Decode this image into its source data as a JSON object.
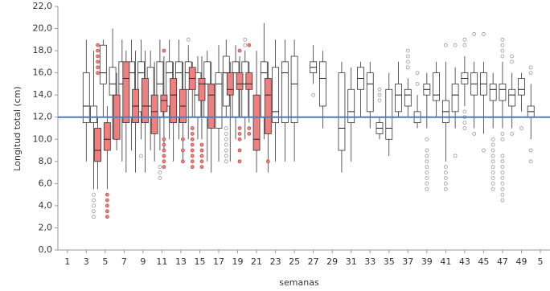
{
  "chart_data": {
    "type": "boxplot",
    "x_label": "semanas",
    "y_label": "Longitud total (cm)",
    "xlim": [
      0,
      51
    ],
    "ylim": [
      0,
      22
    ],
    "xticks": [
      1,
      3,
      5,
      7,
      9,
      11,
      13,
      15,
      17,
      19,
      21,
      23,
      25,
      27,
      29,
      31,
      33,
      35,
      37,
      39,
      41,
      43,
      45,
      47,
      49,
      {
        "value": 51,
        "label": "5"
      }
    ],
    "yticks": [
      {
        "value": 0,
        "label": "0,0"
      },
      {
        "value": 2,
        "label": "2,0"
      },
      {
        "value": 4,
        "label": "4,0"
      },
      {
        "value": 6,
        "label": "6,0"
      },
      {
        "value": 8,
        "label": "8,0"
      },
      {
        "value": 10,
        "label": "10,0"
      },
      {
        "value": 12,
        "label": "12,0"
      },
      {
        "value": 14,
        "label": "14,0"
      },
      {
        "value": 16,
        "label": "16,0"
      },
      {
        "value": 18,
        "label": "18,0"
      },
      {
        "value": 20,
        "label": "20,0"
      },
      {
        "value": 22,
        "label": "22,0"
      }
    ],
    "reference_line": {
      "value": 12,
      "color": "#4a7ebb"
    },
    "series": [
      {
        "color": "#ffffff",
        "flier_color": "#999999",
        "boxes": [
          {
            "x": 3,
            "whislo": 8,
            "q1": 11.5,
            "med": 13,
            "q3": 16,
            "whishi": 19
          },
          {
            "x": 4,
            "whislo": 5.5,
            "q1": 11.5,
            "med": 12,
            "q3": 13,
            "whishi": 18,
            "fliers": [
              3,
              3.5,
              4,
              4.5,
              5
            ]
          },
          {
            "x": 5,
            "whislo": 12,
            "q1": 15,
            "med": 16,
            "q3": 18.5,
            "whishi": 19
          },
          {
            "x": 6,
            "whislo": 10,
            "q1": 14,
            "med": 15,
            "q3": 16.5,
            "whishi": 20
          },
          {
            "x": 7,
            "whislo": 8,
            "q1": 12,
            "med": 15,
            "q3": 17,
            "whishi": 19
          },
          {
            "x": 8,
            "whislo": 9,
            "q1": 12,
            "med": 16,
            "q3": 17,
            "whishi": 19
          },
          {
            "x": 9,
            "whislo": 10,
            "q1": 12.5,
            "med": 16,
            "q3": 17,
            "whishi": 19,
            "fliers": [
              8.5
            ]
          },
          {
            "x": 10,
            "whislo": 9,
            "q1": 12,
            "med": 13,
            "q3": 16.5,
            "whishi": 18
          },
          {
            "x": 11,
            "whislo": 9,
            "q1": 12,
            "med": 15,
            "q3": 17,
            "whishi": 19,
            "fliers": [
              6.5,
              7,
              7.5
            ]
          },
          {
            "x": 12,
            "whislo": 10,
            "q1": 13,
            "med": 16,
            "q3": 17,
            "whishi": 19
          },
          {
            "x": 13,
            "whislo": 10,
            "q1": 12,
            "med": 16,
            "q3": 17,
            "whishi": 19
          },
          {
            "x": 14,
            "whislo": 10,
            "q1": 14.5,
            "med": 16,
            "q3": 17,
            "whishi": 18.5,
            "fliers": [
              19
            ]
          },
          {
            "x": 15,
            "whislo": 10,
            "q1": 12,
            "med": 14,
            "q3": 16,
            "whishi": 17.5
          },
          {
            "x": 16,
            "whislo": 8,
            "q1": 12,
            "med": 15,
            "q3": 17,
            "whishi": 18
          },
          {
            "x": 17,
            "whislo": 8,
            "q1": 11,
            "med": 15,
            "q3": 16,
            "whishi": 18.5
          },
          {
            "x": 18,
            "whislo": 12,
            "q1": 13,
            "med": 16,
            "q3": 17.5,
            "whishi": 19,
            "fliers": [
              8,
              8.5,
              9,
              9.5,
              10,
              10.5,
              11
            ]
          },
          {
            "x": 19,
            "whislo": 10,
            "q1": 12,
            "med": 16,
            "q3": 17,
            "whishi": 18.5
          },
          {
            "x": 20,
            "whislo": 10,
            "q1": 12,
            "med": 15,
            "q3": 17,
            "whishi": 18,
            "fliers": [
              18.5,
              19
            ]
          },
          {
            "x": 22,
            "whislo": 10,
            "q1": 12,
            "med": 16,
            "q3": 17,
            "whishi": 20.5
          },
          {
            "x": 23,
            "whislo": 8,
            "q1": 11.5,
            "med": 12.5,
            "q3": 16.5,
            "whishi": 19
          },
          {
            "x": 24,
            "whislo": 8,
            "q1": 11.5,
            "med": 16,
            "q3": 17,
            "whishi": 19
          },
          {
            "x": 25,
            "whislo": 8,
            "q1": 11.5,
            "med": 15,
            "q3": 17.5,
            "whishi": 19
          },
          {
            "x": 27,
            "whislo": 15,
            "q1": 16,
            "med": 16.5,
            "q3": 17,
            "whishi": 18.5,
            "fliers": [
              14
            ]
          },
          {
            "x": 28,
            "whislo": 11,
            "q1": 13,
            "med": 15.5,
            "q3": 17,
            "whishi": 18
          },
          {
            "x": 30,
            "whislo": 7,
            "q1": 9,
            "med": 11,
            "q3": 16,
            "whishi": 17
          },
          {
            "x": 31,
            "whislo": 8,
            "q1": 11.5,
            "med": 12.5,
            "q3": 14.5,
            "whishi": 16.5
          },
          {
            "x": 32,
            "whislo": 12,
            "q1": 14.5,
            "med": 15.5,
            "q3": 16.5,
            "whishi": 17
          },
          {
            "x": 33,
            "whislo": 11,
            "q1": 12.5,
            "med": 15,
            "q3": 16,
            "whishi": 17
          },
          {
            "x": 34,
            "whislo": 10,
            "q1": 10.5,
            "med": 11,
            "q3": 11.5,
            "whishi": 12,
            "fliers": [
              13.5,
              14,
              14.5
            ]
          },
          {
            "x": 35,
            "whislo": 8.5,
            "q1": 10,
            "med": 11,
            "q3": 14.5,
            "whishi": 16
          },
          {
            "x": 36,
            "whislo": 12,
            "q1": 12.5,
            "med": 14,
            "q3": 15,
            "whishi": 17
          },
          {
            "x": 37,
            "whislo": 12,
            "q1": 13,
            "med": 14,
            "q3": 14.5,
            "whishi": 15.5,
            "fliers": [
              16.5,
              17,
              17.5,
              18
            ]
          },
          {
            "x": 38,
            "whislo": 11,
            "q1": 11.5,
            "med": 12,
            "q3": 12.5,
            "whishi": 14,
            "fliers": [
              15,
              16
            ]
          },
          {
            "x": 39,
            "whislo": 11,
            "q1": 14,
            "med": 14.5,
            "q3": 15,
            "whishi": 16,
            "fliers": [
              5.5,
              6,
              6.5,
              7,
              7.5,
              8,
              8.5,
              9,
              10
            ]
          },
          {
            "x": 40,
            "whislo": 12,
            "q1": 13.5,
            "med": 14,
            "q3": 16,
            "whishi": 17
          },
          {
            "x": 41,
            "whislo": 8,
            "q1": 11.5,
            "med": 12.5,
            "q3": 13.5,
            "whishi": 17,
            "fliers": [
              5.5,
              6,
              6.5,
              7,
              7.5,
              18.5
            ]
          },
          {
            "x": 42,
            "whislo": 11,
            "q1": 12.5,
            "med": 14,
            "q3": 15,
            "whishi": 16.5,
            "fliers": [
              8.5,
              18.5
            ]
          },
          {
            "x": 43,
            "whislo": 13,
            "q1": 15,
            "med": 15.5,
            "q3": 16,
            "whishi": 17.5,
            "fliers": [
              11,
              11.5,
              12,
              12.5,
              18.5,
              19
            ]
          },
          {
            "x": 44,
            "whislo": 11,
            "q1": 14,
            "med": 15,
            "q3": 16,
            "whishi": 17,
            "fliers": [
              10.5,
              19.5
            ]
          },
          {
            "x": 45,
            "whislo": 10.5,
            "q1": 14,
            "med": 15,
            "q3": 16,
            "whishi": 17,
            "fliers": [
              9,
              19.5
            ]
          },
          {
            "x": 46,
            "whislo": 11,
            "q1": 13.5,
            "med": 14.5,
            "q3": 15,
            "whishi": 16,
            "fliers": [
              5.5,
              6,
              6.5,
              7,
              7.5,
              8,
              8.5,
              9,
              9.5,
              10
            ]
          },
          {
            "x": 47,
            "whislo": 11,
            "q1": 13.5,
            "med": 14.5,
            "q3": 15,
            "whishi": 17,
            "fliers": [
              4.5,
              5,
              5.5,
              6,
              6.5,
              7,
              7.5,
              8,
              8.5,
              10,
              10.5,
              17.5,
              18,
              18.5,
              19
            ]
          },
          {
            "x": 48,
            "whislo": 11,
            "q1": 13,
            "med": 14,
            "q3": 14.5,
            "whishi": 16,
            "fliers": [
              10.5,
              17,
              17.5
            ]
          },
          {
            "x": 49,
            "whislo": 12.5,
            "q1": 14,
            "med": 14.5,
            "q3": 15.5,
            "whishi": 16,
            "fliers": [
              11
            ]
          },
          {
            "x": 50,
            "whislo": 10,
            "q1": 12,
            "med": 12.5,
            "q3": 13,
            "whishi": 15,
            "fliers": [
              8,
              9,
              16,
              16.5
            ]
          }
        ]
      },
      {
        "color": "#f08080",
        "flier_color": "#c0504d",
        "boxes": [
          {
            "x": 4,
            "whislo": 5.5,
            "q1": 8,
            "med": 9,
            "q3": 11,
            "whishi": 12,
            "fliers": [
              16,
              16.5,
              17,
              17.5,
              18,
              18.5
            ]
          },
          {
            "x": 5,
            "whislo": 5.5,
            "q1": 9,
            "med": 10,
            "q3": 11.5,
            "whishi": 13,
            "fliers": [
              3,
              3.5,
              4,
              4.5,
              5
            ]
          },
          {
            "x": 6,
            "whislo": 9,
            "q1": 10,
            "med": 12,
            "q3": 14,
            "whishi": 16
          },
          {
            "x": 7,
            "whislo": 7,
            "q1": 11.5,
            "med": 15.5,
            "q3": 17,
            "whishi": 18
          },
          {
            "x": 8,
            "whislo": 7,
            "q1": 11.5,
            "med": 13,
            "q3": 14.5,
            "whishi": 18
          },
          {
            "x": 9,
            "whislo": 7,
            "q1": 11.5,
            "med": 13,
            "q3": 15.5,
            "whishi": 18
          },
          {
            "x": 10,
            "whislo": 8,
            "q1": 10.5,
            "med": 12.5,
            "q3": 14,
            "whishi": 17
          },
          {
            "x": 11,
            "whislo": 9,
            "q1": 12.5,
            "med": 13.5,
            "q3": 14,
            "whishi": 17.5,
            "fliers": [
              7.5,
              8,
              8.5,
              9,
              9.5,
              10,
              18
            ]
          },
          {
            "x": 12,
            "whislo": 8,
            "q1": 11.5,
            "med": 14,
            "q3": 15.5,
            "whishi": 17
          },
          {
            "x": 13,
            "whislo": 8,
            "q1": 11.5,
            "med": 13,
            "q3": 14.5,
            "whishi": 17,
            "fliers": [
              8,
              9,
              10
            ]
          },
          {
            "x": 14,
            "whislo": 12,
            "q1": 14.5,
            "med": 15.5,
            "q3": 16.5,
            "whishi": 17,
            "fliers": [
              7.5,
              8,
              8.5,
              9,
              9.5,
              10,
              10.5,
              11
            ]
          },
          {
            "x": 15,
            "whislo": 10,
            "q1": 13.5,
            "med": 15,
            "q3": 15.5,
            "whishi": 17.5,
            "fliers": [
              7.5,
              8,
              8.5,
              9,
              9.5
            ]
          },
          {
            "x": 16,
            "whislo": 7,
            "q1": 11,
            "med": 14,
            "q3": 15,
            "whishi": 17
          },
          {
            "x": 18,
            "whislo": 8,
            "q1": 14,
            "med": 14.5,
            "q3": 16,
            "whishi": 17
          },
          {
            "x": 19,
            "whislo": 12,
            "q1": 14.5,
            "med": 15,
            "q3": 16,
            "whishi": 17.5,
            "fliers": [
              8,
              9,
              10,
              10.5,
              11,
              18
            ]
          },
          {
            "x": 20,
            "whislo": 11.5,
            "q1": 14.5,
            "med": 15,
            "q3": 16,
            "whishi": 17,
            "fliers": [
              10.5,
              11,
              18.5
            ]
          },
          {
            "x": 21,
            "whislo": 7,
            "q1": 9,
            "med": 10,
            "q3": 14,
            "whishi": 18
          },
          {
            "x": 22,
            "whislo": 7,
            "q1": 10.5,
            "med": 14,
            "q3": 15.5,
            "whishi": 17,
            "fliers": [
              8
            ]
          }
        ]
      }
    ]
  }
}
